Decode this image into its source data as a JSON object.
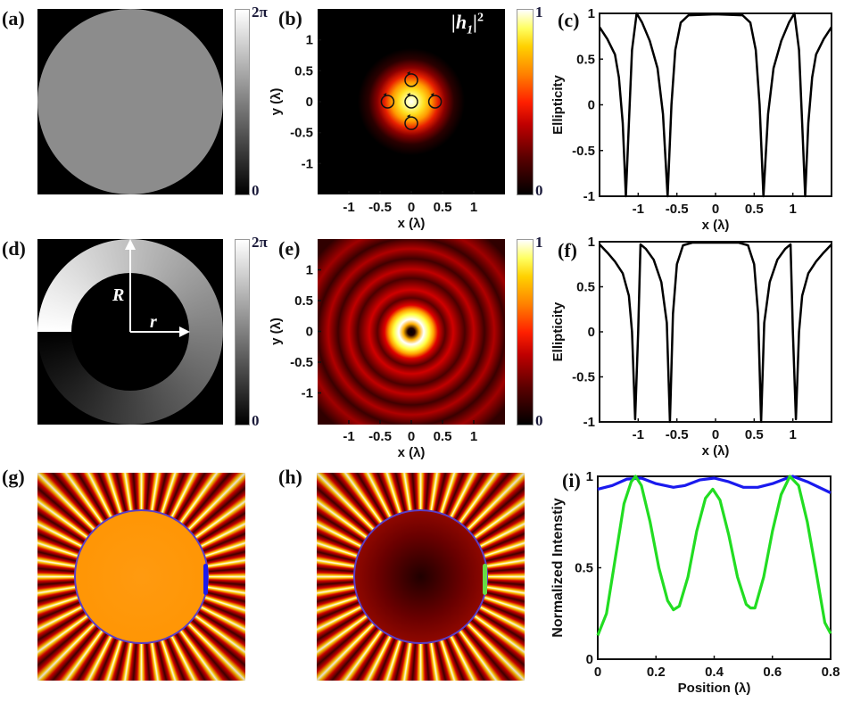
{
  "panel_labels": [
    "(a)",
    "(b)",
    "(c)",
    "(d)",
    "(e)",
    "(f)",
    "(g)",
    "(h)",
    "(i)"
  ],
  "colors": {
    "green_line": "#22dd22",
    "blue_line": "#1a1aee",
    "circle_outline": "#5a3ec8",
    "phase_gray": "#8c8c8c"
  },
  "chart_data": [
    {
      "panel": "(a)",
      "type": "heatmap",
      "colormap": "gray",
      "content": "uniform phase disk",
      "colorbar": {
        "top": "2π",
        "bottom": "0"
      }
    },
    {
      "panel": "(b)",
      "type": "heatmap",
      "colormap": "hot",
      "annotation": {
        "open": "|",
        "base": "h",
        "sub": "1",
        "close": "|",
        "sup": "2"
      },
      "xlabel": "x (λ)",
      "ylabel": "y (λ)",
      "xlim": [
        -1.5,
        1.5
      ],
      "ylim": [
        -1.5,
        1.5
      ],
      "xticks": [
        "-1",
        "-0.5",
        "0",
        "0.5",
        "1"
      ],
      "yticks": [
        "1",
        "0.5",
        "0",
        "-0.5",
        "-1"
      ],
      "polarization_markers": [
        [
          0,
          0.35
        ],
        [
          -0.38,
          0
        ],
        [
          0,
          0
        ],
        [
          0.38,
          0
        ],
        [
          0,
          -0.35
        ]
      ],
      "colorbar": {
        "top": "1",
        "bottom": "0"
      }
    },
    {
      "panel": "(c)",
      "type": "line",
      "xlabel": "x (λ)",
      "ylabel": "Ellipticity",
      "xlim": [
        -1.5,
        1.5
      ],
      "ylim": [
        -1,
        1
      ],
      "xticks": [
        "-1",
        "-0.5",
        "0",
        "0.5",
        "1"
      ],
      "yticks": [
        "1",
        "0.5",
        "0",
        "-0.5",
        "-1"
      ],
      "series": [
        {
          "color": "#000000",
          "x": [
            -1.5,
            -1.4,
            -1.3,
            -1.25,
            -1.2,
            -1.16,
            -1.12,
            -1.08,
            -1.02,
            -0.95,
            -0.85,
            -0.75,
            -0.68,
            -0.62,
            -0.57,
            -0.52,
            -0.45,
            -0.35,
            0,
            0.35,
            0.45,
            0.52,
            0.57,
            0.62,
            0.68,
            0.75,
            0.85,
            0.95,
            1.02,
            1.08,
            1.12,
            1.16,
            1.2,
            1.25,
            1.3,
            1.4,
            1.5
          ],
          "y": [
            0.85,
            0.72,
            0.55,
            0.3,
            -0.2,
            -1,
            -0.2,
            0.6,
            1,
            0.9,
            0.7,
            0.4,
            -0.1,
            -1,
            0,
            0.6,
            0.9,
            0.98,
            0.99,
            0.98,
            0.9,
            0.6,
            0,
            -1,
            -0.1,
            0.4,
            0.7,
            0.9,
            1,
            0.6,
            -0.2,
            -1,
            -0.2,
            0.3,
            0.55,
            0.72,
            0.85
          ]
        }
      ]
    },
    {
      "panel": "(d)",
      "type": "heatmap",
      "colormap": "gray",
      "content": "vortex phase ring",
      "annotations": {
        "outer_radius": "R",
        "inner_radius": "r"
      },
      "colorbar": {
        "top": "2π",
        "bottom": "0"
      }
    },
    {
      "panel": "(e)",
      "type": "heatmap",
      "colormap": "hot",
      "xlabel": "x (λ)",
      "ylabel": "y (λ)",
      "xlim": [
        -1.5,
        1.5
      ],
      "ylim": [
        -1.5,
        1.5
      ],
      "xticks": [
        "-1",
        "-0.5",
        "0",
        "0.5",
        "1"
      ],
      "yticks": [
        "1",
        "0.5",
        "0",
        "-0.5",
        "-1"
      ],
      "colorbar": {
        "top": "1",
        "bottom": "0"
      }
    },
    {
      "panel": "(f)",
      "type": "line",
      "xlabel": "x (λ)",
      "ylabel": "Ellipticity",
      "xlim": [
        -1.5,
        1.5
      ],
      "ylim": [
        -1,
        1
      ],
      "xticks": [
        "-1",
        "-0.5",
        "0",
        "0.5",
        "1"
      ],
      "yticks": [
        "1",
        "0.5",
        "0",
        "-0.5",
        "-1"
      ],
      "series": [
        {
          "color": "#000000",
          "x": [
            -1.5,
            -1.4,
            -1.3,
            -1.2,
            -1.12,
            -1.08,
            -1.04,
            -1.0,
            -0.97,
            -0.9,
            -0.8,
            -0.7,
            -0.63,
            -0.59,
            -0.55,
            -0.5,
            -0.42,
            -0.3,
            0,
            0.3,
            0.42,
            0.5,
            0.55,
            0.59,
            0.63,
            0.7,
            0.8,
            0.9,
            0.97,
            1.0,
            1.04,
            1.08,
            1.12,
            1.2,
            1.3,
            1.4,
            1.5
          ],
          "y": [
            0.97,
            0.88,
            0.78,
            0.65,
            0.4,
            0,
            -0.97,
            0,
            0.97,
            0.92,
            0.8,
            0.55,
            0.1,
            -1,
            0.2,
            0.75,
            0.96,
            0.99,
            0.99,
            0.99,
            0.96,
            0.75,
            0.2,
            -1,
            0.1,
            0.55,
            0.8,
            0.92,
            0.97,
            0,
            -0.97,
            0,
            0.4,
            0.65,
            0.78,
            0.88,
            0.97
          ]
        }
      ]
    },
    {
      "panel": "(g)",
      "type": "heatmap",
      "colormap": "hot",
      "content": "radial spoke intensity pattern with marked circle and blue segment"
    },
    {
      "panel": "(h)",
      "type": "heatmap",
      "colormap": "hot",
      "content": "radial spoke intensity pattern with marked circle and green segment"
    },
    {
      "panel": "(i)",
      "type": "line",
      "xlabel": "Position (λ)",
      "ylabel": "Normalized Intenstiy",
      "xlim": [
        0,
        0.8
      ],
      "ylim": [
        0,
        1
      ],
      "xticks": [
        "0",
        "0.2",
        "0.4",
        "0.6",
        "0.8"
      ],
      "yticks": [
        "1",
        "0.5",
        "0"
      ],
      "series": [
        {
          "color": "#1a1aee",
          "x": [
            0,
            0.05,
            0.1,
            0.15,
            0.2,
            0.26,
            0.3,
            0.35,
            0.4,
            0.45,
            0.5,
            0.55,
            0.6,
            0.65,
            0.67,
            0.72,
            0.8
          ],
          "y": [
            0.93,
            0.95,
            0.985,
            0.99,
            0.96,
            0.94,
            0.95,
            0.98,
            0.99,
            0.97,
            0.94,
            0.94,
            0.96,
            0.99,
            1.0,
            0.97,
            0.91
          ]
        },
        {
          "color": "#22dd22",
          "x": [
            0,
            0.03,
            0.06,
            0.09,
            0.115,
            0.13,
            0.15,
            0.18,
            0.21,
            0.24,
            0.26,
            0.28,
            0.31,
            0.34,
            0.37,
            0.395,
            0.42,
            0.45,
            0.48,
            0.51,
            0.525,
            0.54,
            0.57,
            0.6,
            0.63,
            0.66,
            0.69,
            0.72,
            0.75,
            0.78,
            0.8
          ],
          "y": [
            0.13,
            0.25,
            0.55,
            0.85,
            0.97,
            1.0,
            0.95,
            0.75,
            0.5,
            0.32,
            0.27,
            0.29,
            0.45,
            0.7,
            0.88,
            0.93,
            0.87,
            0.68,
            0.45,
            0.3,
            0.28,
            0.28,
            0.45,
            0.7,
            0.9,
            1.0,
            0.95,
            0.75,
            0.48,
            0.2,
            0.14
          ]
        }
      ]
    }
  ]
}
